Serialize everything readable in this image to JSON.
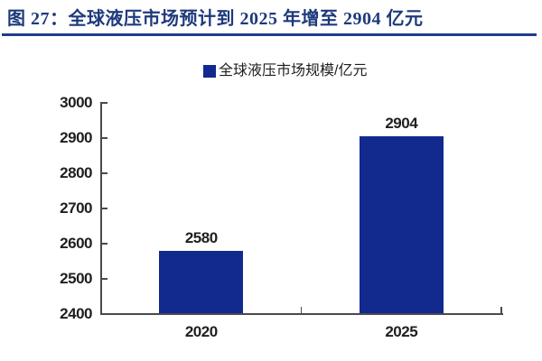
{
  "figure": {
    "title": "图 27：全球液压市场预计到 2025 年增至 2904 亿元"
  },
  "legend": {
    "label": "全球液压市场规模/亿元"
  },
  "chart_data": {
    "type": "bar",
    "title": "图 27：全球液压市场预计到 2025 年增至 2904 亿元",
    "categories": [
      "2020",
      "2025"
    ],
    "series": [
      {
        "name": "全球液压市场规模/亿元",
        "values": [
          2580,
          2904
        ]
      }
    ],
    "data_labels": [
      "2580",
      "2904"
    ],
    "ylabel": "",
    "xlabel": "",
    "ylim": [
      2400,
      3000
    ],
    "ytick_step": 100,
    "ytick_labels": [
      "2400",
      "2500",
      "2600",
      "2700",
      "2800",
      "2900",
      "3000"
    ],
    "grid": false,
    "legend_position": "top",
    "legend_entries": [
      "全球液压市场规模/亿元"
    ],
    "bar_color": "#12298E"
  },
  "colors": {
    "bar": "#12298E",
    "title_text": "#1E3A7C",
    "title_underline": "#1F3D8C",
    "axis_line": "#4A4A4A",
    "label_text": "#1F1F1F"
  }
}
